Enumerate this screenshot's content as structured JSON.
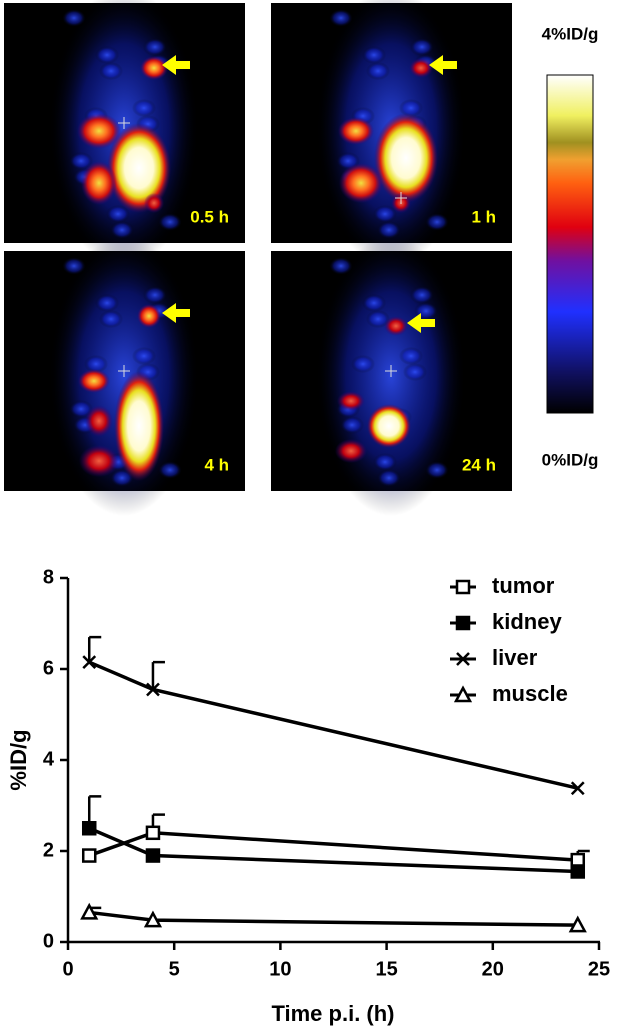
{
  "images": {
    "labels": [
      "0.5 h",
      "1 h",
      "4 h",
      "24 h"
    ],
    "colorbar": {
      "max_label": "4%ID/g",
      "min_label": "0%ID/g"
    }
  },
  "chart_data": {
    "type": "line",
    "xlabel": "Time p.i. (h)",
    "ylabel": "%ID/g",
    "x": [
      1,
      4,
      24
    ],
    "series": [
      {
        "name": "tumor",
        "color": "#000000",
        "marker": "open-square",
        "values": [
          1.9,
          2.4,
          1.8
        ],
        "errors": [
          null,
          0.4,
          0.2
        ]
      },
      {
        "name": "kidney",
        "color": "#000000",
        "marker": "filled-square",
        "values": [
          2.5,
          1.9,
          1.55
        ],
        "errors": [
          0.7,
          null,
          null
        ]
      },
      {
        "name": "liver",
        "color": "#000000",
        "marker": "cross",
        "values": [
          6.15,
          5.55,
          3.38
        ],
        "errors": [
          0.55,
          0.6,
          null
        ]
      },
      {
        "name": "muscle",
        "color": "#000000",
        "marker": "open-triangle",
        "values": [
          0.65,
          0.48,
          0.37
        ],
        "errors": [
          0.1,
          null,
          null
        ]
      }
    ],
    "xlim": [
      0,
      25
    ],
    "xticks": [
      0,
      5,
      10,
      15,
      20,
      25
    ],
    "ylim": [
      0,
      8
    ],
    "yticks": [
      0,
      2,
      4,
      6,
      8
    ],
    "grid": false,
    "legend": "top-right"
  }
}
